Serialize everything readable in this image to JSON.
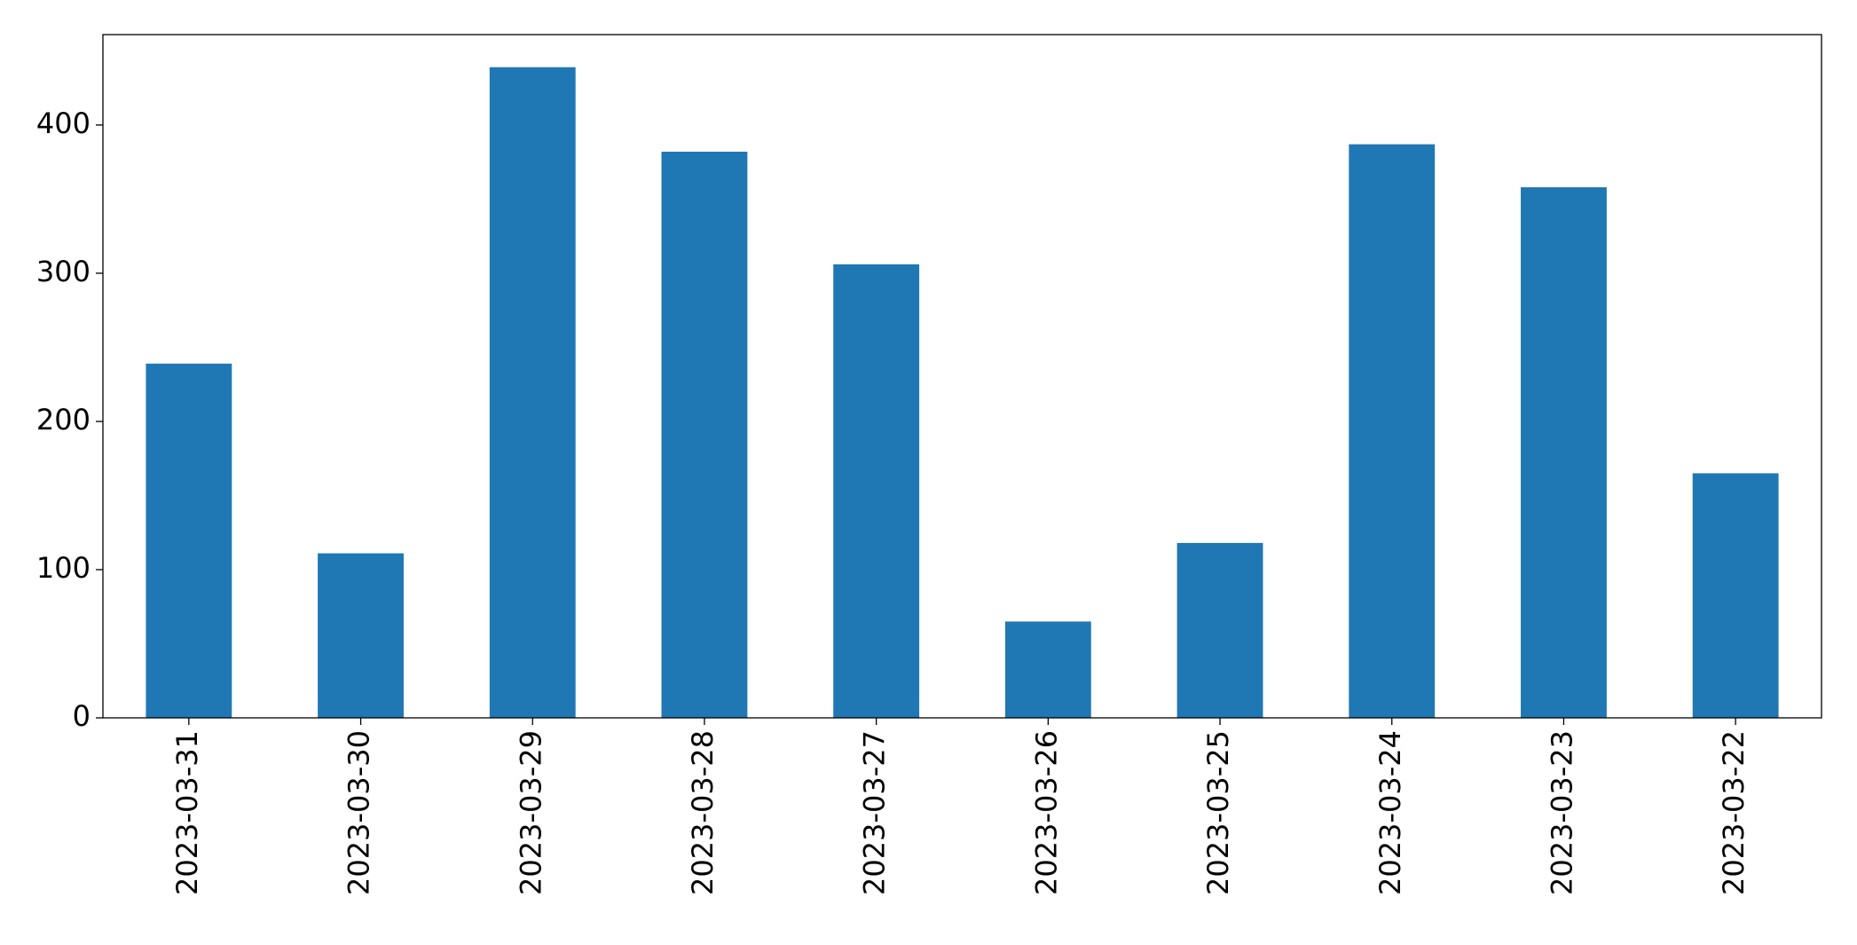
{
  "chart_data": {
    "type": "bar",
    "categories": [
      "2023-03-31",
      "2023-03-30",
      "2023-03-29",
      "2023-03-28",
      "2023-03-27",
      "2023-03-26",
      "2023-03-25",
      "2023-03-24",
      "2023-03-23",
      "2023-03-22"
    ],
    "values": [
      239,
      111,
      439,
      382,
      306,
      65,
      118,
      387,
      358,
      165
    ],
    "color": "#1f77b4",
    "ylim": [
      0,
      461
    ],
    "yticks": [
      0,
      100,
      200,
      300,
      400
    ],
    "grid": false
  }
}
